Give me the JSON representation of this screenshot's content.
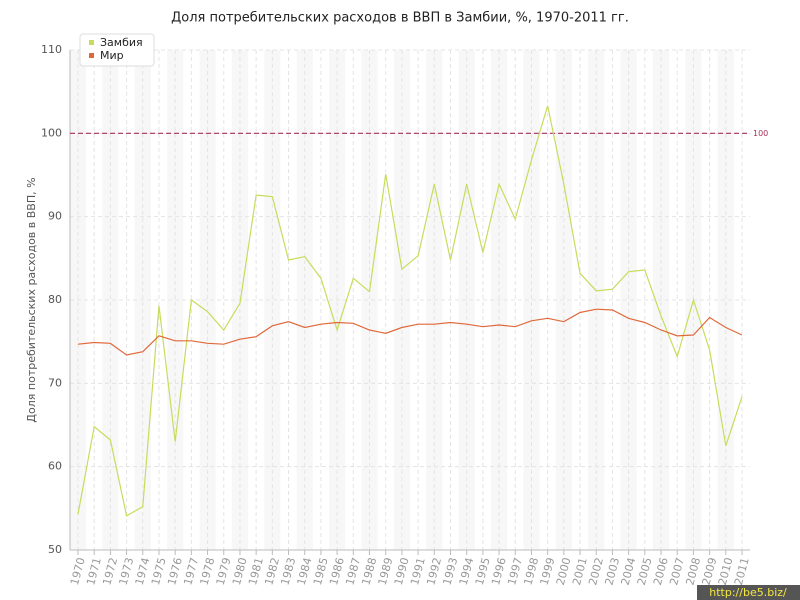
{
  "chart_data": {
    "type": "line",
    "title": "Доля потребительских расходов в ВВП в Замбии, %, 1970-2011 гг.",
    "y_label": "Доля потребительских расходов в ВВП, %",
    "categories": [
      "1970",
      "1971",
      "1972",
      "1973",
      "1974",
      "1975",
      "1976",
      "1977",
      "1978",
      "1979",
      "1980",
      "1981",
      "1982",
      "1983",
      "1984",
      "1985",
      "1986",
      "1987",
      "1988",
      "1989",
      "1990",
      "1991",
      "1992",
      "1993",
      "1994",
      "1995",
      "1996",
      "1997",
      "1998",
      "1999",
      "2000",
      "2001",
      "2002",
      "2003",
      "2004",
      "2005",
      "2006",
      "2007",
      "2008",
      "2009",
      "2010",
      "2011"
    ],
    "series": [
      {
        "name": "Замбия",
        "color": "#c6dd5c",
        "values": [
          54.3,
          64.8,
          63.2,
          54.1,
          55.2,
          79.3,
          63,
          80,
          78.6,
          76.4,
          79.6,
          92.6,
          92.4,
          84.8,
          85.2,
          82.6,
          76.4,
          82.6,
          81,
          95.1,
          83.7,
          85.3,
          93.9,
          84.8,
          93.9,
          85.7,
          93.9,
          89.7,
          96.8,
          103.3,
          93.9,
          83.2,
          81.1,
          81.3,
          83.4,
          83.6,
          78.1,
          73.2,
          80,
          74,
          62.5,
          68.4
        ]
      },
      {
        "name": "Мир",
        "color": "#e0693c",
        "values": [
          74.7,
          74.9,
          74.8,
          73.4,
          73.8,
          75.7,
          75.1,
          75.1,
          74.8,
          74.7,
          75.3,
          75.6,
          76.9,
          77.4,
          76.7,
          77.1,
          77.3,
          77.2,
          76.4,
          76,
          76.7,
          77.1,
          77.1,
          77.3,
          77.1,
          76.8,
          77,
          76.8,
          77.5,
          77.8,
          77.4,
          78.5,
          78.9,
          78.8,
          77.8,
          77.3,
          76.4,
          75.7,
          75.8,
          77.9,
          76.7,
          75.8
        ]
      }
    ],
    "ylim": [
      50,
      110
    ],
    "yticks": [
      50,
      60,
      70,
      80,
      90,
      100,
      110
    ],
    "grid": true,
    "reference_line": {
      "value": 100,
      "color": "#a8325a"
    },
    "legend": "top-left",
    "watermark": "http://be5.biz/"
  }
}
